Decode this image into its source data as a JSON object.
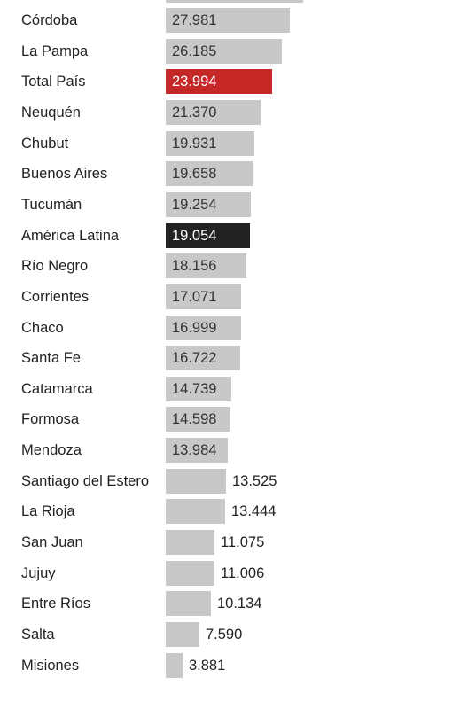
{
  "chart_data": {
    "type": "bar",
    "orientation": "horizontal",
    "categories": [
      "Córdoba",
      "La Pampa",
      "Total País",
      "Neuquén",
      "Chubut",
      "Buenos Aires",
      "Tucumán",
      "América Latina",
      "Río Negro",
      "Corrientes",
      "Chaco",
      "Santa Fe",
      "Catamarca",
      "Formosa",
      "Mendoza",
      "Santiago del Estero",
      "La Rioja",
      "San Juan",
      "Jujuy",
      "Entre Ríos",
      "Salta",
      "Misiones"
    ],
    "value_labels": [
      "27.981",
      "26.185",
      "23.994",
      "21.370",
      "19.931",
      "19.658",
      "19.254",
      "19.054",
      "18.156",
      "17.071",
      "16.999",
      "16.722",
      "14.739",
      "14.598",
      "13.984",
      "13.525",
      "13.444",
      "11.075",
      "11.006",
      "10.134",
      "7.590",
      "3.881"
    ],
    "values": [
      27981,
      26185,
      23994,
      21370,
      19931,
      19658,
      19254,
      19054,
      18156,
      17071,
      16999,
      16722,
      14739,
      14598,
      13984,
      13525,
      13444,
      11075,
      11006,
      10134,
      7590,
      3881
    ],
    "highlight": {
      "Total País": "#c62828",
      "América Latina": "#222222"
    },
    "bar_color": "#c8c8c8",
    "title": "",
    "xlabel": "",
    "ylabel": ""
  }
}
